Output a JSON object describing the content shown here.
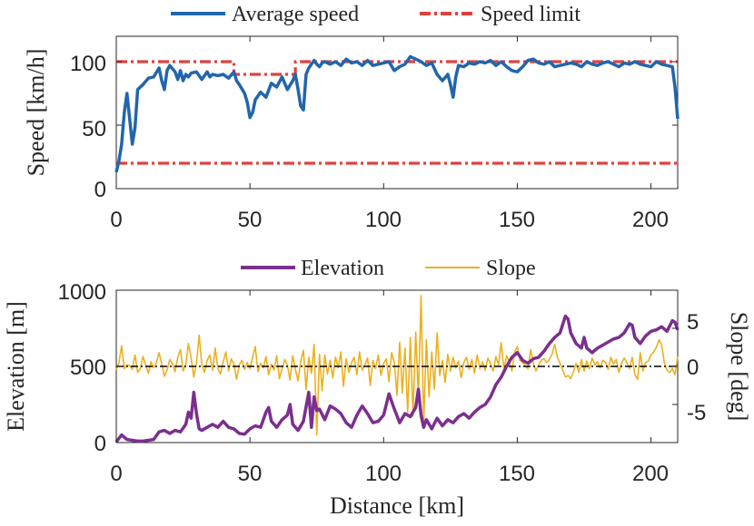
{
  "colors": {
    "average_speed": "#2166ac",
    "speed_limit": "#e0413e",
    "elevation": "#7b2f8e",
    "slope": "#ecb01f",
    "zero_line": "#000000",
    "axis": "#262626"
  },
  "chart_data": [
    {
      "type": "line",
      "title": "",
      "xlabel": "",
      "ylabel": "Speed [km/h]",
      "xlim": [
        0,
        210
      ],
      "ylim": [
        0,
        120
      ],
      "xticks": [
        "0",
        "50",
        "100",
        "150",
        "200"
      ],
      "yticks": [
        "0",
        "50",
        "100"
      ],
      "legend": {
        "position": "top-center",
        "entries": [
          "Average speed",
          "Speed limit"
        ]
      },
      "series": [
        {
          "name": "Average speed",
          "style": "solid",
          "x": [
            0,
            1,
            2,
            3,
            4,
            5,
            6,
            7,
            8,
            10,
            12,
            14,
            16,
            17,
            18,
            19,
            20,
            22,
            23,
            24,
            25,
            26,
            27,
            28,
            30,
            32,
            34,
            35,
            36,
            38,
            40,
            42,
            44,
            45,
            46,
            48,
            49,
            50,
            51,
            52,
            54,
            56,
            58,
            60,
            62,
            64,
            66,
            67,
            68,
            69,
            70,
            71,
            72,
            73,
            74,
            75,
            76,
            77,
            78,
            80,
            82,
            84,
            86,
            88,
            90,
            92,
            94,
            96,
            98,
            100,
            102,
            104,
            106,
            108,
            110,
            112,
            114,
            116,
            118,
            120,
            122,
            124,
            125,
            126,
            127,
            128,
            130,
            132,
            134,
            136,
            138,
            140,
            142,
            144,
            146,
            148,
            150,
            152,
            154,
            156,
            158,
            160,
            162,
            164,
            166,
            168,
            170,
            172,
            174,
            176,
            178,
            180,
            182,
            184,
            186,
            188,
            190,
            192,
            194,
            196,
            198,
            200,
            202,
            204,
            206,
            208,
            209,
            210
          ],
          "values": [
            13,
            22,
            35,
            60,
            75,
            55,
            35,
            48,
            78,
            82,
            87,
            88,
            95,
            85,
            78,
            93,
            97,
            92,
            86,
            93,
            85,
            90,
            88,
            91,
            92,
            86,
            92,
            88,
            90,
            89,
            90,
            87,
            92,
            85,
            82,
            75,
            68,
            56,
            60,
            70,
            76,
            72,
            83,
            80,
            88,
            78,
            85,
            90,
            78,
            65,
            62,
            90,
            95,
            98,
            101,
            98,
            96,
            99,
            100,
            98,
            100,
            97,
            102,
            99,
            100,
            97,
            101,
            97,
            98,
            99,
            100,
            93,
            96,
            98,
            104,
            102,
            100,
            97,
            99,
            90,
            85,
            90,
            82,
            72,
            88,
            97,
            96,
            99,
            98,
            100,
            99,
            101,
            97,
            100,
            96,
            93,
            92,
            96,
            101,
            102,
            99,
            98,
            100,
            96,
            97,
            98,
            99,
            98,
            96,
            100,
            98,
            97,
            99,
            100,
            98,
            96,
            99,
            98,
            100,
            98,
            97,
            96,
            100,
            98,
            97,
            96,
            80,
            55
          ]
        },
        {
          "name": "Speed limit",
          "style": "dash-dot",
          "segments": [
            {
              "x": [
                0,
                44,
                44,
                67,
                67,
                210
              ],
              "values": [
                100,
                100,
                90,
                90,
                100,
                100
              ]
            },
            {
              "x": [
                0,
                210
              ],
              "values": [
                20,
                20
              ]
            }
          ]
        }
      ]
    },
    {
      "type": "line",
      "title": "",
      "xlabel": "Distance [km]",
      "ylabel": "Elevation [m]",
      "ylabel_right": "Slope [deg]",
      "xlim": [
        0,
        210
      ],
      "ylim": [
        0,
        1000
      ],
      "ylim_right": [
        -10,
        10
      ],
      "xticks": [
        "0",
        "50",
        "100",
        "150",
        "200"
      ],
      "yticks": [
        "0",
        "500",
        "1000"
      ],
      "yticks_right": [
        "-5",
        "0",
        "5"
      ],
      "legend": {
        "position": "top-center",
        "entries": [
          "Elevation",
          "Slope"
        ]
      },
      "series": [
        {
          "name": "Elevation",
          "axis": "left",
          "x": [
            0,
            2,
            4,
            6,
            8,
            10,
            14,
            16,
            18,
            20,
            22,
            24,
            26,
            27,
            28,
            29,
            30,
            31,
            32,
            34,
            36,
            38,
            40,
            42,
            44,
            46,
            48,
            50,
            52,
            54,
            56,
            57,
            58,
            60,
            62,
            64,
            65,
            66,
            68,
            70,
            72,
            73,
            74,
            75,
            76,
            78,
            80,
            82,
            84,
            86,
            88,
            90,
            92,
            94,
            96,
            98,
            100,
            102,
            104,
            106,
            108,
            110,
            112,
            113,
            114,
            115,
            116,
            118,
            120,
            122,
            124,
            126,
            128,
            130,
            132,
            134,
            136,
            138,
            140,
            142,
            144,
            146,
            148,
            150,
            152,
            154,
            156,
            158,
            160,
            162,
            164,
            166,
            168,
            169,
            170,
            172,
            174,
            175,
            176,
            178,
            180,
            182,
            184,
            186,
            188,
            190,
            192,
            193,
            194,
            196,
            198,
            200,
            202,
            204,
            206,
            208,
            209,
            210
          ],
          "values": [
            5,
            50,
            20,
            15,
            10,
            10,
            20,
            70,
            80,
            60,
            80,
            70,
            120,
            200,
            160,
            330,
            190,
            90,
            80,
            100,
            120,
            100,
            140,
            100,
            90,
            60,
            55,
            90,
            110,
            100,
            200,
            230,
            140,
            100,
            150,
            180,
            250,
            120,
            80,
            140,
            330,
            100,
            300,
            210,
            220,
            150,
            240,
            220,
            190,
            130,
            100,
            180,
            240,
            190,
            130,
            140,
            180,
            320,
            220,
            130,
            190,
            170,
            230,
            350,
            180,
            100,
            150,
            90,
            160,
            110,
            150,
            130,
            170,
            190,
            160,
            200,
            230,
            250,
            300,
            380,
            430,
            500,
            560,
            590,
            540,
            520,
            550,
            560,
            600,
            650,
            690,
            720,
            830,
            810,
            720,
            650,
            620,
            690,
            620,
            590,
            620,
            640,
            660,
            680,
            690,
            720,
            780,
            770,
            690,
            650,
            700,
            730,
            740,
            760,
            730,
            800,
            790,
            740
          ],
          "style": "solid"
        },
        {
          "name": "Slope",
          "axis": "right",
          "x": [
            0,
            1,
            2,
            3,
            4,
            5,
            6,
            7,
            8,
            9,
            10,
            11,
            12,
            13,
            14,
            15,
            16,
            17,
            18,
            19,
            20,
            21,
            22,
            23,
            24,
            25,
            26,
            27,
            28,
            29,
            30,
            31,
            32,
            33,
            34,
            35,
            36,
            37,
            38,
            39,
            40,
            41,
            42,
            43,
            44,
            45,
            46,
            47,
            48,
            49,
            50,
            51,
            52,
            53,
            54,
            55,
            56,
            57,
            58,
            59,
            60,
            61,
            62,
            63,
            64,
            65,
            66,
            67,
            68,
            69,
            70,
            71,
            72,
            73,
            74,
            75,
            76,
            77,
            78,
            79,
            80,
            81,
            82,
            83,
            84,
            85,
            86,
            87,
            88,
            89,
            90,
            91,
            92,
            93,
            94,
            95,
            96,
            97,
            98,
            99,
            100,
            101,
            102,
            103,
            104,
            105,
            106,
            107,
            108,
            109,
            110,
            111,
            112,
            113,
            114,
            115,
            116,
            117,
            118,
            119,
            120,
            121,
            122,
            123,
            124,
            125,
            126,
            127,
            128,
            129,
            130,
            131,
            132,
            133,
            134,
            135,
            136,
            137,
            138,
            139,
            140,
            141,
            142,
            143,
            144,
            145,
            146,
            147,
            148,
            149,
            150,
            151,
            152,
            153,
            154,
            155,
            156,
            157,
            158,
            159,
            160,
            161,
            162,
            163,
            164,
            165,
            166,
            167,
            168,
            169,
            170,
            171,
            172,
            173,
            174,
            175,
            176,
            177,
            178,
            179,
            180,
            181,
            182,
            183,
            184,
            185,
            186,
            187,
            188,
            189,
            190,
            191,
            192,
            193,
            194,
            195,
            196,
            197,
            198,
            199,
            200,
            201,
            202,
            203,
            204,
            205,
            206,
            207,
            208,
            209,
            210
          ],
          "values": [
            -0.5,
            0.5,
            2.7,
            -0.3,
            0.2,
            0.1,
            -0.4,
            1.5,
            -0.8,
            -0.3,
            1.3,
            0.2,
            -0.9,
            0.6,
            -0.2,
            0.5,
            1.8,
            0.3,
            -1.3,
            -0.5,
            0.9,
            0.4,
            -0.7,
            1.2,
            2.2,
            -0.6,
            0.3,
            3.0,
            1.1,
            -1.4,
            0.4,
            4.1,
            0.2,
            -0.8,
            0.8,
            1.5,
            -0.5,
            2.4,
            -0.3,
            -1.0,
            0.6,
            1.9,
            -0.6,
            1.0,
            0.3,
            -1.7,
            0.2,
            0.8,
            -0.4,
            0.5,
            -0.3,
            1.2,
            2.6,
            -0.7,
            0.4,
            -0.2,
            1.3,
            -1.1,
            0.3,
            -0.5,
            1.4,
            -1.6,
            -0.3,
            0.9,
            0.2,
            -1.8,
            1.4,
            -0.4,
            -1.9,
            0.7,
            2.1,
            -3.0,
            1.2,
            -0.9,
            2.9,
            -9.0,
            1.6,
            -3.2,
            1.5,
            -1.0,
            0.8,
            -1.5,
            1.2,
            -0.2,
            1.9,
            -2.6,
            1.0,
            -0.8,
            0.5,
            1.2,
            -1.1,
            1.9,
            -0.5,
            0.2,
            1.1,
            -2.5,
            0.8,
            -0.3,
            1.5,
            -1.2,
            0.4,
            1.0,
            -2.0,
            1.8,
            0.5,
            -3.8,
            3.2,
            -3.5,
            2.4,
            -6.0,
            3.8,
            -6.5,
            4.5,
            -4.2,
            9.3,
            -7.5,
            3.5,
            -4.0,
            1.9,
            -3.0,
            4.4,
            -1.2,
            0.8,
            -2.1,
            1.6,
            -0.6,
            1.2,
            -0.2,
            0.7,
            -1.5,
            0.5,
            1.2,
            -0.4,
            0.9,
            -0.9,
            1.5,
            -0.3,
            0.6,
            -0.5,
            1.1,
            0.3,
            -0.6,
            1.3,
            0.2,
            3.1,
            -0.5,
            1.4,
            0.6,
            -0.6,
            1.9,
            2.6,
            0.8,
            0.5,
            0.1,
            -0.3,
            2.2,
            0.4,
            -0.6,
            0.2,
            0.8,
            1.0,
            0.5,
            0.9,
            1.6,
            2.9,
            1.2,
            0.4,
            -0.5,
            -1.4,
            -1.2,
            -1.6,
            -0.7,
            0.4,
            -0.8,
            0.9,
            -0.6,
            0.7,
            -0.3,
            1.1,
            0.2,
            0.6,
            -0.2,
            0.8,
            0.5,
            -0.4,
            1.2,
            0.3,
            0.9,
            -0.8,
            0.4,
            1.1,
            0.5,
            -0.3,
            1.2,
            -1.1,
            -1.7,
            1.8,
            -0.6,
            0.5,
            0.7,
            1.5,
            1.9,
            2.5,
            3.5,
            2.8,
            0.5,
            -0.5,
            -0.8,
            -0.3,
            -1.1,
            1.3
          ],
          "style": "solid"
        },
        {
          "name": "zero slope",
          "axis": "right",
          "style": "dash-dot",
          "x": [
            0,
            210
          ],
          "values": [
            0,
            0
          ]
        }
      ]
    }
  ]
}
